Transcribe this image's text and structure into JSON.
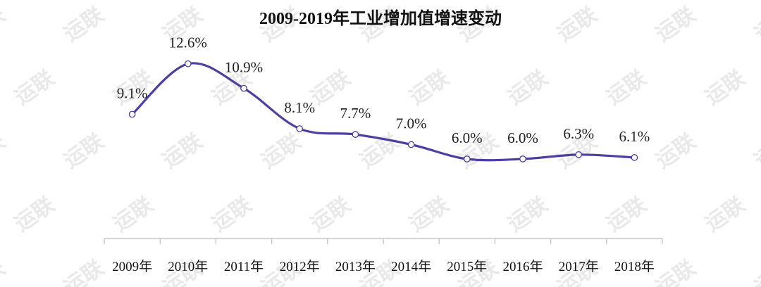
{
  "watermark": "运联",
  "colors": {
    "line": "#4b3fa0",
    "axis": "#c8c8c8",
    "marker_fill": "#ffffff",
    "watermark": "#e9e9e9"
  },
  "chart_data": {
    "type": "line",
    "title": "2009-2019年工业增加值增速变动",
    "categories": [
      "2009年",
      "2010年",
      "2011年",
      "2012年",
      "2013年",
      "2014年",
      "2015年",
      "2016年",
      "2017年",
      "2018年"
    ],
    "series": [
      {
        "values": [
          9.1,
          12.6,
          10.9,
          8.1,
          7.7,
          7.0,
          6.0,
          6.0,
          6.3,
          6.1
        ],
        "data_labels": [
          "9.1%",
          "12.6%",
          "10.9%",
          "8.1%",
          "7.7%",
          "7.0%",
          "6.0%",
          "6.0%",
          "6.3%",
          "6.1%"
        ]
      }
    ],
    "smooth": true,
    "markers": "hollow-circle",
    "grid": false,
    "legend": "none",
    "y_axis_visible": false,
    "ylim": [
      0,
      14
    ]
  }
}
